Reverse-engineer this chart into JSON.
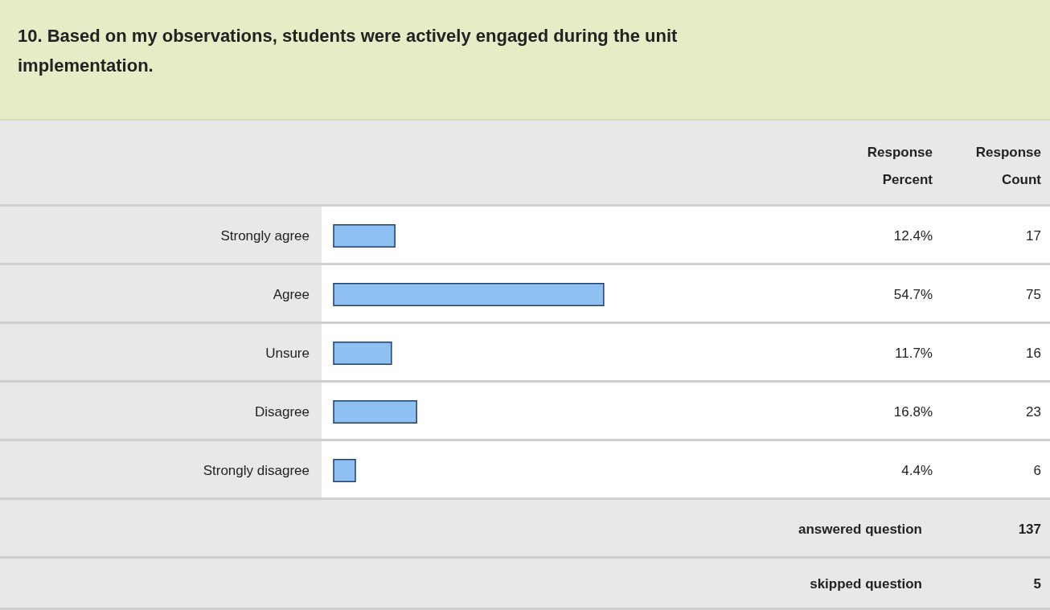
{
  "chart_data": {
    "type": "bar",
    "orientation": "horizontal",
    "title": "10. Based on my observations, students were actively engaged during the unit implementation.",
    "categories": [
      "Strongly agree",
      "Agree",
      "Unsure",
      "Disagree",
      "Strongly disagree"
    ],
    "values": [
      12.4,
      54.7,
      11.7,
      16.8,
      4.4
    ],
    "value_labels": [
      "12.4%",
      "54.7%",
      "11.7%",
      "16.8%",
      "4.4%"
    ],
    "color": "#8fc0f2",
    "annotations": [
      "Response Percent",
      "Response Count",
      "17",
      "75",
      "16",
      "23",
      "6",
      "answered question",
      "137",
      "skipped question",
      "5"
    ]
  }
}
